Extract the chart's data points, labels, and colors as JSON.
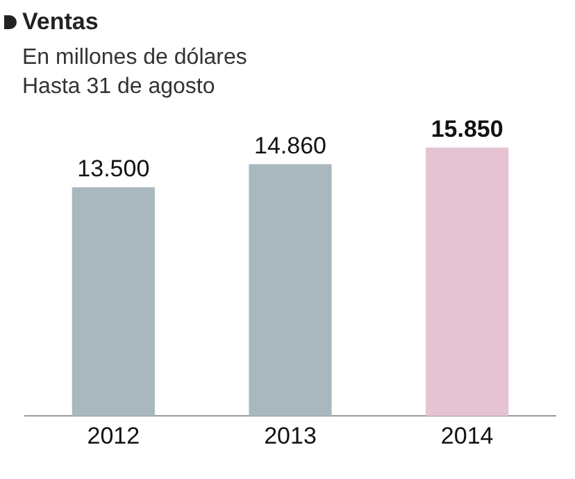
{
  "chart_data": {
    "type": "bar",
    "title": "Ventas",
    "subtitle": "En millones de dólares\nHasta 31 de agosto",
    "categories": [
      "2012",
      "2013",
      "2014"
    ],
    "values": [
      13500,
      14860,
      15850
    ],
    "colors": [
      "#a9b8bf",
      "#a9b8bf",
      "#e5c3d2"
    ],
    "value_labels": [
      "13.500",
      "14.860",
      "15.850"
    ],
    "grid": false,
    "legend": false
  }
}
